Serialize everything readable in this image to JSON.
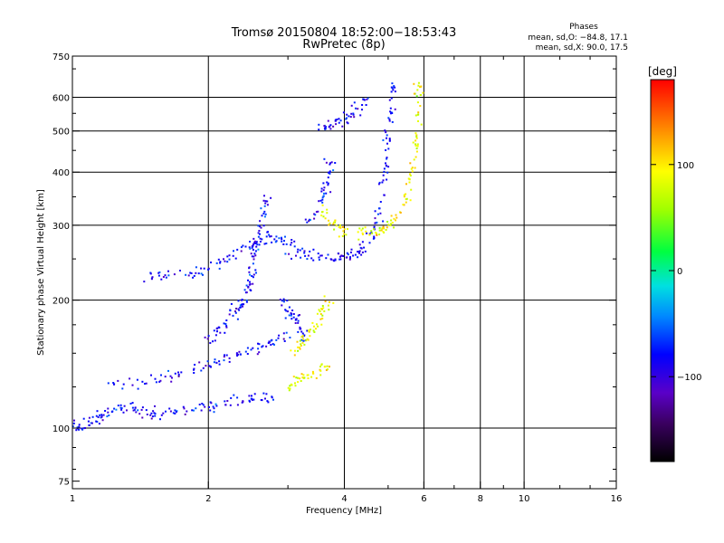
{
  "chart_data": {
    "type": "scatter",
    "title": "Tromsø 20150804 18:52:00−18:53:43",
    "subtitle": "RwPretec (8p)",
    "xlabel": "Frequency [MHz]",
    "ylabel": "Stationary phase Virtual Height [km]",
    "x_scale": "log",
    "y_scale": "log",
    "xlim": [
      1,
      16
    ],
    "ylim": [
      72,
      750
    ],
    "x_ticks": [
      1,
      2,
      4,
      6,
      8,
      10,
      16
    ],
    "x_tick_labels": [
      "1",
      "2",
      "4",
      "6",
      "8",
      "10",
      "16"
    ],
    "y_ticks": [
      75,
      100,
      200,
      300,
      400,
      500,
      600,
      750
    ],
    "y_tick_labels": [
      "75",
      "100",
      "200",
      "300",
      "400",
      "500",
      "600",
      "750"
    ],
    "x_gridlines": [
      2,
      4,
      6,
      8,
      10
    ],
    "y_gridlines": [
      100,
      200,
      300,
      400,
      500,
      600
    ],
    "grid": true,
    "phase_legend": {
      "heading": "Phases",
      "line_o": "mean, sd,O: −84.8, 17.1",
      "line_x": "mean, sd,X: 90.0, 17.5"
    },
    "colorbar": {
      "label": "[deg]",
      "range": [
        -180,
        180
      ],
      "tick_values": [
        100,
        0,
        -100
      ],
      "tick_labels": [
        "100",
        "0",
        "−100"
      ],
      "colormap": "rainbow"
    },
    "series": [
      {
        "mode": "O",
        "phase_mean": -84.8,
        "phase_sd": 17.1,
        "traces": [
          [
            [
              1.0,
              100
            ],
            [
              1.05,
              101
            ],
            [
              1.1,
              104
            ],
            [
              1.15,
              106
            ],
            [
              1.2,
              110
            ],
            [
              1.3,
              112
            ],
            [
              1.4,
              110
            ],
            [
              1.5,
              108
            ],
            [
              1.6,
              108
            ],
            [
              1.8,
              110
            ],
            [
              2.0,
              112
            ],
            [
              2.2,
              115
            ],
            [
              2.4,
              116
            ],
            [
              2.6,
              117
            ],
            [
              2.8,
              118
            ]
          ],
          [
            [
              1.2,
              125
            ],
            [
              1.4,
              128
            ],
            [
              1.6,
              132
            ],
            [
              1.8,
              136
            ],
            [
              2.0,
              140
            ],
            [
              2.2,
              145
            ],
            [
              2.4,
              150
            ],
            [
              2.6,
              155
            ],
            [
              2.8,
              160
            ],
            [
              3.0,
              165
            ]
          ],
          [
            [
              2.0,
              160
            ],
            [
              2.1,
              170
            ],
            [
              2.2,
              180
            ],
            [
              2.3,
              190
            ],
            [
              2.4,
              200
            ],
            [
              2.45,
              215
            ],
            [
              2.5,
              230
            ],
            [
              2.5,
              250
            ],
            [
              2.55,
              270
            ],
            [
              2.6,
              290
            ],
            [
              2.65,
              320
            ],
            [
              2.7,
              350
            ]
          ],
          [
            [
              1.45,
              225
            ],
            [
              1.6,
              227
            ],
            [
              1.8,
              230
            ],
            [
              2.0,
              236
            ],
            [
              2.2,
              250
            ],
            [
              2.4,
              265
            ],
            [
              2.6,
              275
            ],
            [
              2.8,
              280
            ],
            [
              3.0,
              275
            ],
            [
              3.2,
              268
            ]
          ],
          [
            [
              3.0,
              258
            ],
            [
              3.3,
              255
            ],
            [
              3.6,
              252
            ],
            [
              3.9,
              250
            ],
            [
              4.1,
              252
            ],
            [
              4.3,
              260
            ],
            [
              4.5,
              272
            ],
            [
              4.7,
              300
            ],
            [
              4.85,
              340
            ],
            [
              4.95,
              400
            ],
            [
              5.0,
              460
            ],
            [
              5.05,
              520
            ],
            [
              5.1,
              600
            ],
            [
              5.15,
              650
            ]
          ],
          [
            [
              3.3,
              300
            ],
            [
              3.5,
              330
            ],
            [
              3.6,
              360
            ],
            [
              3.7,
              400
            ],
            [
              3.75,
              440
            ]
          ],
          [
            [
              3.55,
              510
            ],
            [
              3.7,
              515
            ],
            [
              3.9,
              525
            ],
            [
              4.1,
              540
            ],
            [
              4.3,
              565
            ],
            [
              4.5,
              600
            ]
          ],
          [
            [
              2.9,
              200
            ],
            [
              3.0,
              190
            ],
            [
              3.1,
              180
            ],
            [
              3.2,
              170
            ],
            [
              3.3,
              160
            ]
          ]
        ]
      },
      {
        "mode": "X",
        "phase_mean": 90.0,
        "phase_sd": 17.5,
        "traces": [
          [
            [
              4.3,
              285
            ],
            [
              4.55,
              287
            ],
            [
              4.8,
              290
            ],
            [
              5.05,
              300
            ],
            [
              5.3,
              320
            ],
            [
              5.5,
              350
            ],
            [
              5.65,
              400
            ],
            [
              5.75,
              460
            ],
            [
              5.8,
              520
            ],
            [
              5.85,
              600
            ],
            [
              5.9,
              650
            ]
          ],
          [
            [
              3.55,
              330
            ],
            [
              3.7,
              310
            ],
            [
              3.9,
              295
            ],
            [
              4.1,
              287
            ]
          ],
          [
            [
              3.1,
              150
            ],
            [
              3.2,
              158
            ],
            [
              3.35,
              168
            ],
            [
              3.5,
              178
            ],
            [
              3.6,
              190
            ],
            [
              3.7,
              200
            ]
          ],
          [
            [
              3.0,
              125
            ],
            [
              3.15,
              128
            ],
            [
              3.3,
              132
            ],
            [
              3.5,
              135
            ],
            [
              3.7,
              140
            ]
          ]
        ]
      }
    ]
  }
}
